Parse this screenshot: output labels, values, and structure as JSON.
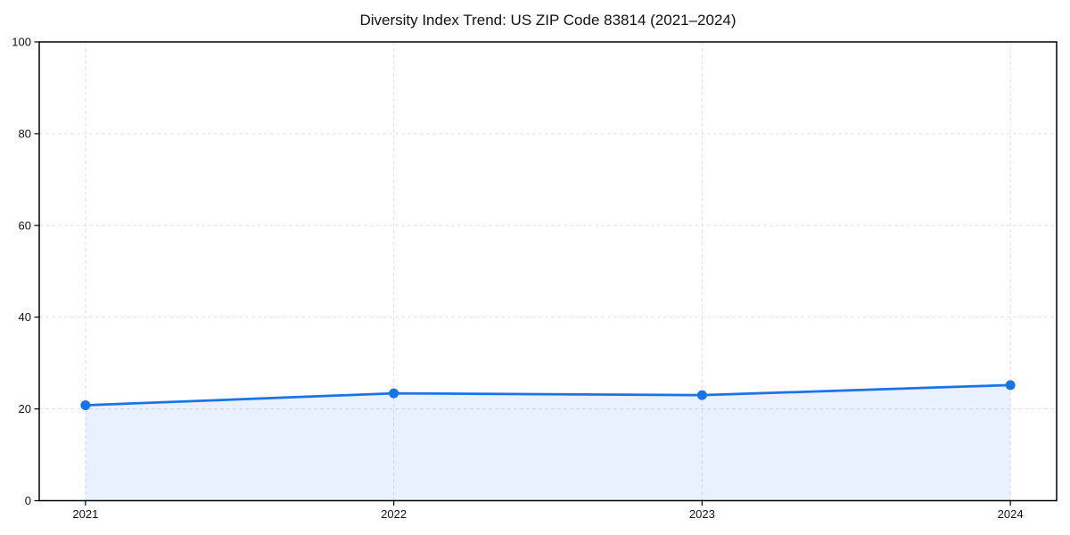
{
  "figure": {
    "background": "#ffffff"
  },
  "chart_data": {
    "type": "line",
    "title": "Diversity Index Trend: US ZIP Code 83814 (2021–2024)",
    "x": [
      2021,
      2022,
      2023,
      2024
    ],
    "x_tick_labels": [
      "2021",
      "2022",
      "2023",
      "2024"
    ],
    "series": [
      {
        "name": "Diversity Index",
        "values": [
          20.8,
          23.4,
          23.0,
          25.2
        ]
      }
    ],
    "xlabel": "",
    "ylabel": "",
    "ylim": [
      0,
      100
    ],
    "yticks": [
      0,
      20,
      40,
      60,
      80,
      100
    ],
    "grid": true,
    "grid_style": "dashed",
    "legend": false,
    "area_fill": true,
    "marker": "circle",
    "colors": {
      "line": "#1a73e8",
      "marker": "#1a73e8",
      "area_fill": "rgba(26,115,232,0.10)",
      "grid": "#e2e2e2",
      "axis": "#000000",
      "tick_text": "#111111",
      "background": "#ffffff"
    }
  }
}
